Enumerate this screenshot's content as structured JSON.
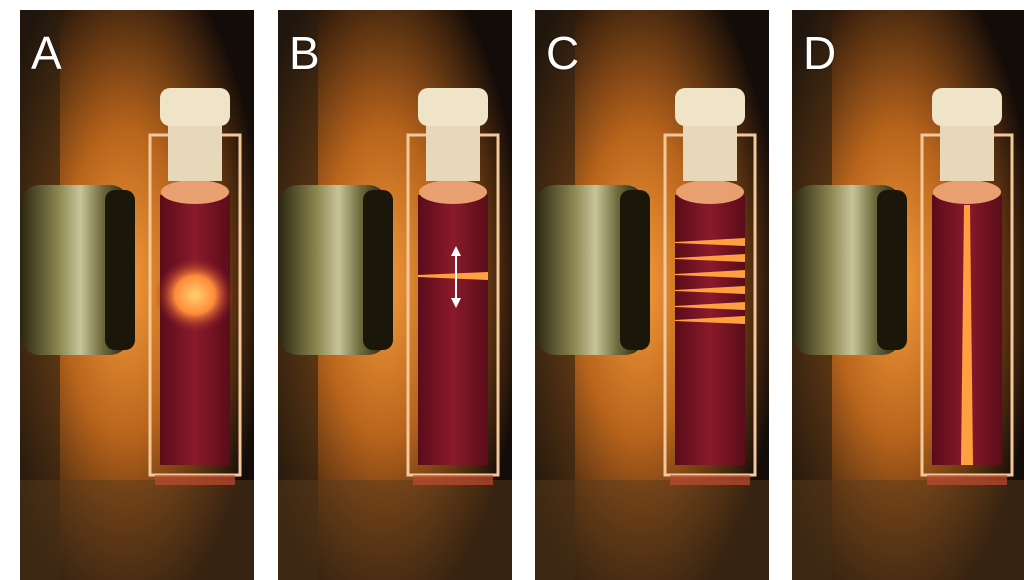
{
  "panels": [
    {
      "id": "A",
      "label": "A",
      "beam_pattern": "diffuse-spot",
      "focus_arrow": false
    },
    {
      "id": "B",
      "label": "B",
      "beam_pattern": "thin-horizontal-line",
      "focus_arrow": true
    },
    {
      "id": "C",
      "label": "C",
      "beam_pattern": "multiple-horizontal-lines",
      "focus_arrow": false
    },
    {
      "id": "D",
      "label": "D",
      "beam_pattern": "vertical-beam",
      "focus_arrow": false
    }
  ],
  "colors": {
    "background": "#120c08",
    "liquid": "#8a1a2a",
    "beam": "#ffa040",
    "glow": "#e07a20",
    "cap": "#efe4c8",
    "lens_metal": "#6e6a3c"
  }
}
